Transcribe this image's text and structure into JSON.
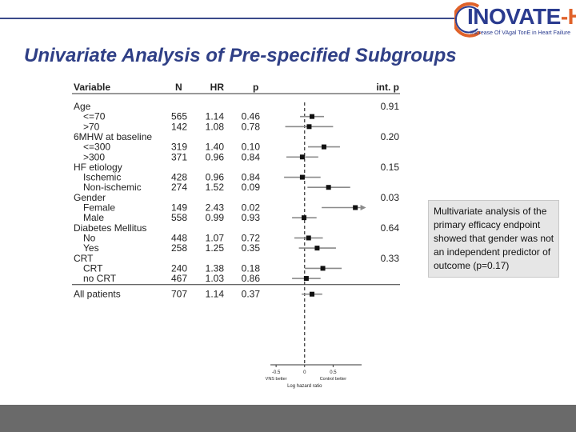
{
  "header": {
    "logo_main": "INOVATE",
    "logo_accent": "-HF",
    "logo_tagline": "INcrease Of VAgal TonE in Heart Failure",
    "title": "Univariate Analysis of Pre-specified Subgroups"
  },
  "note": "Multivariate analysis of the primary efficacy endpoint showed that gender was not an independent predictor of outcome (p=0.17)",
  "colors": {
    "title": "#2f3f86",
    "accent": "#e0622a",
    "footer": "#6a6a6a"
  },
  "chart_data": {
    "type": "forest",
    "columns": {
      "variable": "Variable",
      "n": "N",
      "hr": "HR",
      "p": "p",
      "int_p": "int. p"
    },
    "groups": [
      {
        "label": "Age",
        "int_p": "0.91",
        "rows": [
          {
            "label": "<=70",
            "n": "565",
            "hr": "1.14",
            "p": "0.46",
            "loghr": 0.13,
            "ci": [
              -0.08,
              0.34
            ]
          },
          {
            "label": ">70",
            "n": "142",
            "hr": "1.08",
            "p": "0.78",
            "loghr": 0.08,
            "ci": [
              -0.34,
              0.5
            ]
          }
        ]
      },
      {
        "label": "6MHW at baseline",
        "int_p": "0.20",
        "rows": [
          {
            "label": "<=300",
            "n": "319",
            "hr": "1.40",
            "p": "0.10",
            "loghr": 0.34,
            "ci": [
              0.06,
              0.62
            ]
          },
          {
            "label": ">300",
            "n": "371",
            "hr": "0.96",
            "p": "0.84",
            "loghr": -0.04,
            "ci": [
              -0.32,
              0.24
            ]
          }
        ]
      },
      {
        "label": "HF etiology",
        "int_p": "0.15",
        "rows": [
          {
            "label": "Ischemic",
            "n": "428",
            "hr": "0.96",
            "p": "0.84",
            "loghr": -0.04,
            "ci": [
              -0.36,
              0.28
            ]
          },
          {
            "label": "Non-ischemic",
            "n": "274",
            "hr": "1.52",
            "p": "0.09",
            "loghr": 0.42,
            "ci": [
              0.05,
              0.8
            ]
          }
        ]
      },
      {
        "label": "Gender",
        "int_p": "0.03",
        "rows": [
          {
            "label": "Female",
            "n": "149",
            "hr": "2.43",
            "p": "0.02",
            "loghr": 0.89,
            "ci": [
              0.3,
              1.4
            ],
            "arrow": true
          },
          {
            "label": "Male",
            "n": "558",
            "hr": "0.99",
            "p": "0.93",
            "loghr": -0.01,
            "ci": [
              -0.22,
              0.21
            ]
          }
        ]
      },
      {
        "label": "Diabetes Mellitus",
        "int_p": "0.64",
        "rows": [
          {
            "label": "No",
            "n": "448",
            "hr": "1.07",
            "p": "0.72",
            "loghr": 0.07,
            "ci": [
              -0.18,
              0.32
            ]
          },
          {
            "label": "Yes",
            "n": "258",
            "hr": "1.25",
            "p": "0.35",
            "loghr": 0.22,
            "ci": [
              -0.1,
              0.55
            ]
          }
        ]
      },
      {
        "label": "CRT",
        "int_p": "0.33",
        "rows": [
          {
            "label": "CRT",
            "n": "240",
            "hr": "1.38",
            "p": "0.18",
            "loghr": 0.32,
            "ci": [
              0.0,
              0.65
            ]
          },
          {
            "label": "no CRT",
            "n": "467",
            "hr": "1.03",
            "p": "0.86",
            "loghr": 0.03,
            "ci": [
              -0.22,
              0.28
            ]
          }
        ]
      }
    ],
    "overall": {
      "label": "All patients",
      "n": "707",
      "hr": "1.14",
      "p": "0.37",
      "loghr": 0.13,
      "ci": [
        -0.05,
        0.31
      ]
    },
    "x_axis": {
      "label": "Log hazard ratio",
      "ticks": [
        -0.5,
        0,
        0.5
      ],
      "tick_labels": [
        "-0.5",
        "0",
        "0.5"
      ],
      "range": [
        -0.6,
        1.0
      ],
      "left_annotation": "VNS better",
      "right_annotation": "Control better"
    }
  }
}
